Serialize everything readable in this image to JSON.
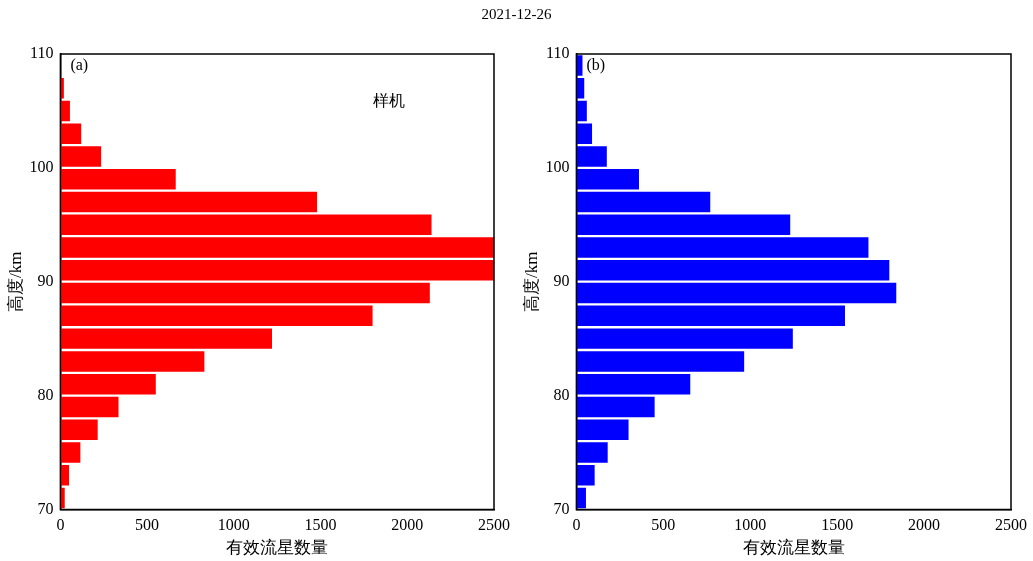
{
  "chart_data": [
    {
      "type": "histogram",
      "title": "2021-12-26",
      "orientation": "horizontal",
      "xlabel": "有效流星数量",
      "ylabel": "高度/km",
      "bins": [
        70,
        72,
        74,
        76,
        78,
        80,
        82,
        84,
        86,
        88,
        90,
        92,
        94,
        96,
        98,
        100,
        102,
        104,
        106,
        108
      ],
      "series": [
        {
          "name": "样机",
          "color": "#ff0000",
          "values": [
            25,
            50,
            115,
            215,
            335,
            550,
            830,
            1220,
            1800,
            2130,
            2500,
            2500,
            2140,
            1480,
            665,
            235,
            120,
            55,
            20
          ]
        }
      ],
      "xlim": [
        0,
        2500
      ],
      "xticks": [
        0,
        500,
        1000,
        1500,
        2000,
        2500
      ],
      "ylim": [
        70,
        110
      ],
      "yticks": [
        70,
        80,
        90,
        100,
        110
      ],
      "annotations": [
        "(a)"
      ],
      "grid": false,
      "legend": false
    },
    {
      "type": "histogram",
      "orientation": "horizontal",
      "xlabel": "有效流星数量",
      "ylabel": "高度/km",
      "bins": [
        70,
        72,
        74,
        76,
        78,
        80,
        82,
        84,
        86,
        88,
        90,
        92,
        94,
        96,
        98,
        100,
        102,
        104,
        106,
        108,
        110
      ],
      "series": [
        {
          "color": "#0000ff",
          "values": [
            55,
            105,
            180,
            300,
            450,
            655,
            965,
            1245,
            1545,
            1840,
            1800,
            1680,
            1230,
            770,
            360,
            175,
            90,
            60,
            45,
            35
          ]
        }
      ],
      "xlim": [
        0,
        2500
      ],
      "xticks": [
        0,
        500,
        1000,
        1500,
        2000,
        2500
      ],
      "ylim": [
        70,
        110
      ],
      "yticks": [
        70,
        80,
        90,
        100,
        110
      ],
      "annotations": [
        "(b)"
      ],
      "grid": false,
      "legend": false
    }
  ]
}
